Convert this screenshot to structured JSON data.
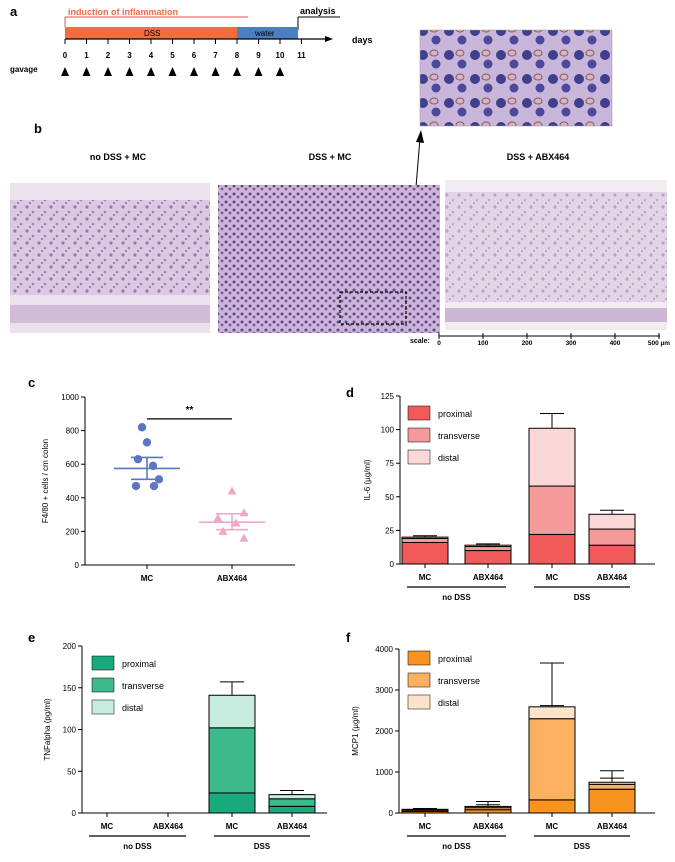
{
  "panel_a": {
    "letter": "a",
    "induction_label": "induction of inflammation",
    "analysis_label": "analysis",
    "dss_label": "DSS",
    "water_label": "water",
    "days_label": "days",
    "gavage_label": "gavage",
    "day_ticks": [
      "0",
      "1",
      "2",
      "3",
      "4",
      "5",
      "6",
      "7",
      "8",
      "9",
      "10",
      "11"
    ],
    "colors": {
      "dss": "#f26c3c",
      "water": "#4a7fc1",
      "induction": "#e8504a"
    }
  },
  "panel_b": {
    "letter": "b",
    "titles": [
      "no DSS + MC",
      "DSS + MC",
      "DSS + ABX464"
    ],
    "scale_label": "scale:",
    "scale_ticks": [
      "0",
      "100",
      "200",
      "300",
      "400",
      "500 µm"
    ]
  },
  "chart_data": [
    {
      "panel": "c",
      "type": "scatter",
      "ylabel": "F4/80 + cells / cm colon",
      "ylim": [
        0,
        1000
      ],
      "yticks": [
        "0",
        "200",
        "400",
        "600",
        "800",
        "1000"
      ],
      "categories": [
        "MC",
        "ABX464"
      ],
      "significance": "**",
      "series": [
        {
          "category": "MC",
          "color": "#5b77c2",
          "points": [
            820,
            730,
            630,
            590,
            510,
            470,
            470
          ],
          "mean": 575,
          "sem_low": 510,
          "sem_high": 640
        },
        {
          "category": "ABX464",
          "color": "#f0a8c6",
          "points": [
            440,
            310,
            280,
            250,
            200,
            160
          ],
          "mean": 255,
          "sem_low": 210,
          "sem_high": 305
        }
      ]
    },
    {
      "panel": "d",
      "type": "bar",
      "ylabel": "IL-6 (µg/ml)",
      "ylim": [
        0,
        125
      ],
      "yticks": [
        "0",
        "25",
        "50",
        "75",
        "100",
        "125"
      ],
      "categories": [
        "MC",
        "ABX464",
        "MC",
        "ABX464"
      ],
      "groups": [
        "no DSS",
        "DSS"
      ],
      "legend": [
        "proximal",
        "transverse",
        "distal"
      ],
      "colors": [
        "#f05a5a",
        "#f59a9a",
        "#fbd8d8"
      ],
      "cumulative_tops": [
        [
          16,
          19,
          20
        ],
        [
          10,
          13,
          14
        ],
        [
          22,
          58,
          101
        ],
        [
          14,
          26,
          37
        ]
      ],
      "error_tops": [
        [
          18,
          20,
          21
        ],
        [
          12,
          14,
          15
        ],
        [
          32,
          60,
          112
        ],
        [
          19,
          31,
          40
        ]
      ]
    },
    {
      "panel": "e",
      "type": "bar",
      "ylabel": "TNFalpha (pg/ml)",
      "ylim": [
        0,
        200
      ],
      "yticks": [
        "0",
        "50",
        "100",
        "150",
        "200"
      ],
      "categories": [
        "MC",
        "ABX464",
        "MC",
        "ABX464"
      ],
      "groups": [
        "no DSS",
        "DSS"
      ],
      "legend": [
        "proximal",
        "transverse",
        "distal"
      ],
      "colors": [
        "#19a97b",
        "#3dba8a",
        "#c8ece0"
      ],
      "cumulative_tops": [
        [
          0,
          0,
          0
        ],
        [
          0,
          0,
          0
        ],
        [
          24,
          102,
          141
        ],
        [
          8,
          17,
          22
        ]
      ],
      "error_tops": [
        [
          0,
          0,
          0
        ],
        [
          0,
          0,
          0
        ],
        [
          43,
          138,
          157
        ],
        [
          10,
          22,
          27
        ]
      ]
    },
    {
      "panel": "f",
      "type": "bar",
      "ylabel": "MCP1 (µg/ml)",
      "ylim": [
        0,
        4000
      ],
      "yticks": [
        "0",
        "1000",
        "2000",
        "3000",
        "4000"
      ],
      "categories": [
        "MC",
        "ABX464",
        "MC",
        "ABX464"
      ],
      "groups": [
        "no DSS",
        "DSS"
      ],
      "legend": [
        "proximal",
        "transverse",
        "distal"
      ],
      "colors": [
        "#f7931e",
        "#fbb160",
        "#fde3c8"
      ],
      "cumulative_tops": [
        [
          40,
          70,
          90
        ],
        [
          80,
          130,
          160
        ],
        [
          320,
          2300,
          2590
        ],
        [
          580,
          700,
          750
        ]
      ],
      "error_tops": [
        [
          60,
          90,
          110
        ],
        [
          120,
          200,
          280
        ],
        [
          580,
          2620,
          3660
        ],
        [
          700,
          850,
          1030
        ]
      ]
    }
  ]
}
